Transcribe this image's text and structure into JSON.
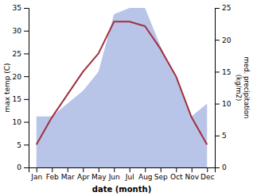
{
  "chart_data": {
    "type": "line",
    "categories": [
      "Jan",
      "Feb",
      "Mar",
      "Apr",
      "May",
      "Jun",
      "Jul",
      "Aug",
      "Sep",
      "Oct",
      "Nov",
      "Dec"
    ],
    "series": [
      {
        "type": "area",
        "axis": "y2",
        "color": "#b8c4e8",
        "values": [
          8,
          8,
          10,
          12,
          15,
          24,
          25,
          25,
          19,
          14,
          8,
          10
        ]
      },
      {
        "type": "line",
        "color": "#a03040",
        "values": [
          5,
          11,
          16,
          21,
          25,
          32,
          32,
          31,
          26,
          20,
          11,
          5
        ]
      }
    ],
    "xlabel": "date (month)",
    "ylabel": "max temp (C)",
    "y2label": "med. precipitation\n(kg/m2)",
    "ylim": [
      0,
      35
    ],
    "yticks": [
      0,
      5,
      10,
      15,
      20,
      25,
      30,
      35
    ],
    "y2lim": [
      0,
      25
    ],
    "y2ticks": [
      0,
      5,
      10,
      15,
      20,
      25
    ],
    "grid": false
  }
}
